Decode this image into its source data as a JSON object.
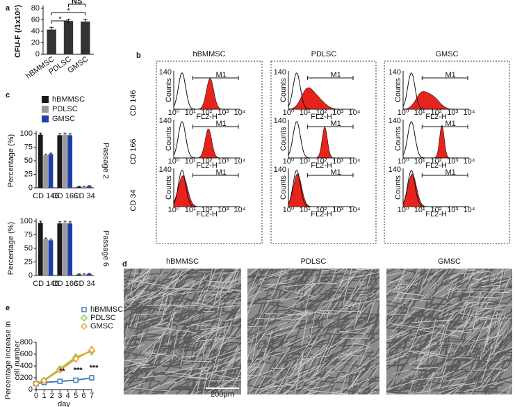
{
  "chart_data": [
    {
      "type": "bar",
      "panel_label": "a",
      "ylabel": "CFU-F (/1x10⁶)",
      "categories": [
        "hBMMSC",
        "PDLSC",
        "GMSC"
      ],
      "values": [
        43,
        58,
        57
      ],
      "errors": [
        4,
        3,
        4
      ],
      "color": "#333333",
      "ylim": [
        0,
        80
      ],
      "yticks": [
        0,
        20,
        40,
        60,
        80
      ],
      "annotations": [
        "*",
        "*",
        "NS"
      ]
    },
    {
      "type": "bar",
      "panel_label": "c",
      "ylabel": "Percentage (%)",
      "side_label": "Passage 2",
      "categories": [
        "CD 146",
        "CD 166",
        "CD 34"
      ],
      "series": [
        {
          "name": "hBMMSC",
          "color": "#1a1a1a",
          "values": [
            98,
            97,
            2
          ],
          "errors": [
            3,
            3,
            1
          ]
        },
        {
          "name": "PDLSC",
          "color": "#9a9a9a",
          "values": [
            60,
            98,
            2
          ],
          "errors": [
            2,
            3,
            1
          ]
        },
        {
          "name": "GMSC",
          "color": "#1f3fa8",
          "values": [
            62,
            97,
            3
          ],
          "errors": [
            2,
            3,
            1
          ]
        }
      ],
      "ylim": [
        0,
        100
      ],
      "yticks": [
        0,
        25,
        50,
        75,
        100
      ]
    },
    {
      "type": "bar",
      "ylabel": "Percentage (%)",
      "side_label": "Passage 6",
      "categories": [
        "CD 146",
        "CD 166",
        "CD 34"
      ],
      "series": [
        {
          "color": "#1a1a1a",
          "values": [
            97,
            96,
            2
          ],
          "errors": [
            3,
            3,
            1
          ]
        },
        {
          "color": "#9a9a9a",
          "values": [
            67,
            97,
            2
          ],
          "errors": [
            2,
            3,
            1
          ]
        },
        {
          "color": "#1f3fa8",
          "values": [
            65,
            96,
            3
          ],
          "errors": [
            2,
            3,
            1
          ]
        }
      ],
      "ylim": [
        0,
        100
      ],
      "yticks": [
        0,
        25,
        50,
        75,
        100
      ]
    },
    {
      "type": "line",
      "panel_label": "e",
      "xlabel": "day",
      "ylabel": [
        "Percentage increase in",
        "cell number"
      ],
      "x": [
        0,
        1,
        3,
        5,
        7
      ],
      "series": [
        {
          "name": "hBMMSC",
          "color": "#3a7fc1",
          "marker": "square",
          "values": [
            100,
            120,
            140,
            160,
            200
          ],
          "errors": [
            20,
            20,
            20,
            25,
            40
          ]
        },
        {
          "name": "PDLSC",
          "color": "#8dc63f",
          "marker": "diamond",
          "values": [
            100,
            160,
            350,
            550,
            650
          ],
          "errors": [
            20,
            30,
            40,
            50,
            60
          ]
        },
        {
          "name": "GMSC",
          "color": "#f0a030",
          "marker": "diamond",
          "values": [
            100,
            150,
            330,
            520,
            670
          ],
          "errors": [
            20,
            30,
            40,
            50,
            60
          ]
        }
      ],
      "xlim": [
        0,
        7
      ],
      "xticks": [
        0,
        1,
        2,
        3,
        4,
        5,
        6,
        7
      ],
      "ylim": [
        0,
        800
      ],
      "yticks": [
        0,
        200,
        400,
        600,
        800
      ],
      "annotations": [
        "**",
        "***",
        "***"
      ]
    }
  ],
  "flow_cytometry": {
    "panel_label": "b",
    "columns": [
      "hBMMSC",
      "PDLSC",
      "GMSC"
    ],
    "rows": [
      "CD 146",
      "CD 166",
      "CD 34"
    ],
    "y_axis_label": "Counts",
    "y_max_label": "140",
    "gate_label": "M1",
    "x_axis_label": "FL2-H",
    "x_tick_labels": [
      "10⁰",
      "10¹",
      "10²",
      "10³",
      "10⁴"
    ]
  },
  "micrographs": {
    "panel_label": "d",
    "titles": [
      "hBMMSC",
      "PDLSC",
      "GMSC"
    ],
    "scale_bar": "200µm"
  }
}
